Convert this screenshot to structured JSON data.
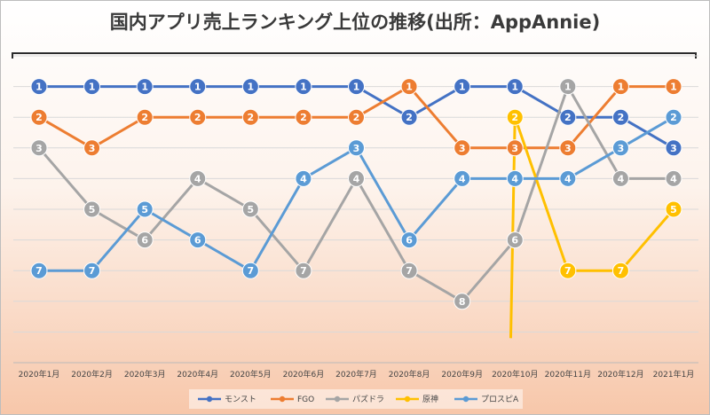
{
  "chart_data": {
    "type": "line",
    "title": "国内アプリ売上ランキング上位の推移(出所：AppAnnie)",
    "categories": [
      "2020年1月",
      "2020年2月",
      "2020年3月",
      "2020年4月",
      "2020年5月",
      "2020年6月",
      "2020年7月",
      "2020年8月",
      "2020年9月",
      "2020年10月",
      "2020年11月",
      "2020年12月",
      "2021年1月"
    ],
    "y_axis": {
      "inverted": true,
      "range": [
        1,
        10
      ],
      "tick_labels_visible": false
    },
    "grid": true,
    "legend": "bottom",
    "series": [
      {
        "name": "モンスト",
        "color": "#4472c4",
        "values": [
          1,
          1,
          1,
          1,
          1,
          1,
          1,
          2,
          1,
          1,
          2,
          2,
          3
        ]
      },
      {
        "name": "FGO",
        "color": "#ed7d31",
        "values": [
          2,
          3,
          2,
          2,
          2,
          2,
          2,
          1,
          3,
          3,
          3,
          1,
          1
        ]
      },
      {
        "name": "パズドラ",
        "color": "#a5a5a5",
        "values": [
          3,
          5,
          6,
          4,
          5,
          7,
          4,
          7,
          8,
          6,
          1,
          4,
          4
        ]
      },
      {
        "name": "原神",
        "color": "#ffc000",
        "values": [
          null,
          null,
          null,
          null,
          null,
          null,
          null,
          null,
          null,
          2,
          7,
          7,
          5
        ],
        "offchart_before": 9
      },
      {
        "name": "プロスピA",
        "color": "#5b9bd5",
        "values": [
          7,
          7,
          5,
          6,
          7,
          4,
          3,
          6,
          4,
          4,
          4,
          3,
          2
        ]
      }
    ]
  }
}
